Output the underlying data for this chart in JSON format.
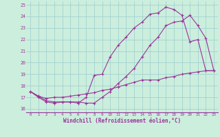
{
  "xlabel": "Windchill (Refroidissement éolien,°C)",
  "bg_color": "#cceedd",
  "line_color": "#993399",
  "grid_color": "#99cccc",
  "xlim": [
    -0.5,
    23.5
  ],
  "ylim": [
    15.7,
    25.3
  ],
  "xticks": [
    0,
    1,
    2,
    3,
    4,
    5,
    6,
    7,
    8,
    9,
    10,
    11,
    12,
    13,
    14,
    15,
    16,
    17,
    18,
    19,
    20,
    21,
    22,
    23
  ],
  "yticks": [
    16,
    17,
    18,
    19,
    20,
    21,
    22,
    23,
    24,
    25
  ],
  "line1_x": [
    0,
    1,
    2,
    3,
    4,
    5,
    6,
    7,
    8,
    9,
    10,
    11,
    12,
    13,
    14,
    15,
    16,
    17,
    18,
    19,
    20,
    21,
    22,
    23
  ],
  "line1_y": [
    17.5,
    17.0,
    16.6,
    16.5,
    16.6,
    16.6,
    16.6,
    16.5,
    16.5,
    17.0,
    17.5,
    18.2,
    18.8,
    19.5,
    20.5,
    21.5,
    22.2,
    23.2,
    23.5,
    23.6,
    24.1,
    23.2,
    22.1,
    19.3
  ],
  "line2_x": [
    0,
    1,
    2,
    3,
    4,
    5,
    6,
    7,
    8,
    9,
    10,
    11,
    12,
    13,
    14,
    15,
    16,
    17,
    18,
    19,
    20,
    21,
    22,
    23
  ],
  "line2_y": [
    17.5,
    17.1,
    16.7,
    16.6,
    16.6,
    16.6,
    16.5,
    17.0,
    18.9,
    19.0,
    20.5,
    21.5,
    22.2,
    23.0,
    23.5,
    24.2,
    24.3,
    24.8,
    24.6,
    24.1,
    21.8,
    22.0,
    19.3,
    19.3
  ],
  "line3_x": [
    0,
    1,
    2,
    3,
    4,
    5,
    6,
    7,
    8,
    9,
    10,
    11,
    12,
    13,
    14,
    15,
    16,
    17,
    18,
    19,
    20,
    21,
    22,
    23
  ],
  "line3_y": [
    17.5,
    17.1,
    16.9,
    17.0,
    17.0,
    17.1,
    17.2,
    17.3,
    17.4,
    17.6,
    17.7,
    17.9,
    18.1,
    18.3,
    18.5,
    18.5,
    18.5,
    18.7,
    18.8,
    19.0,
    19.1,
    19.2,
    19.3,
    19.3
  ]
}
